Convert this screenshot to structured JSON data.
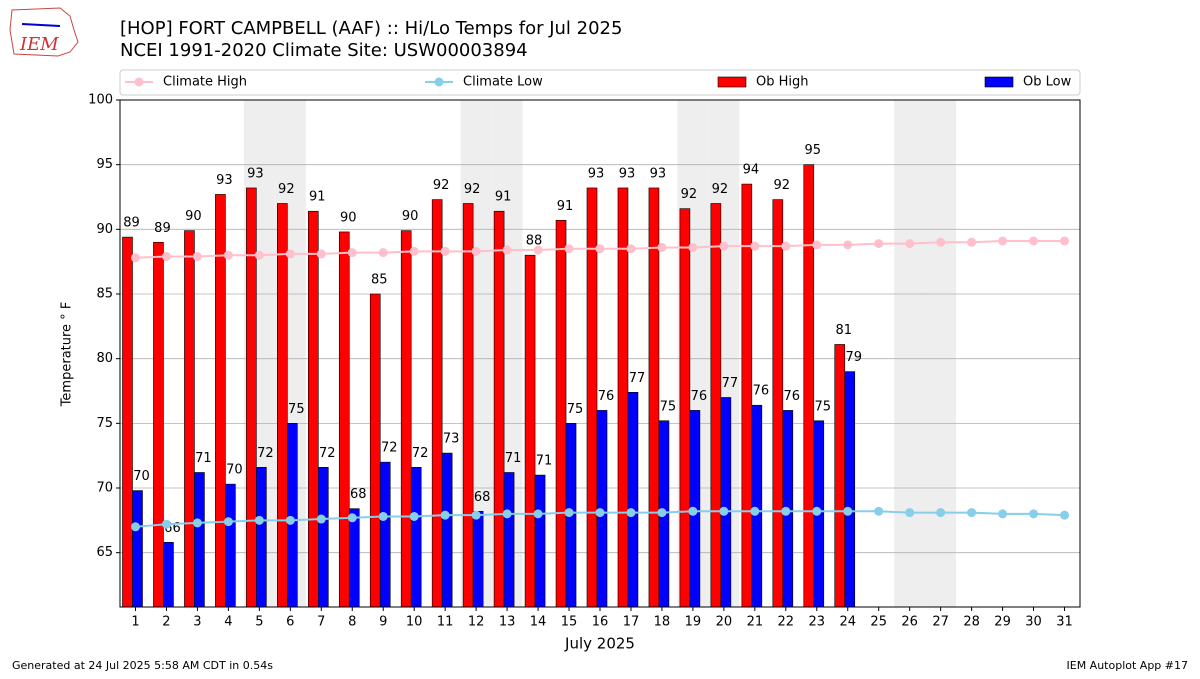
{
  "logo_text": "IEM",
  "footer_left": "Generated at 24 Jul 2025 5:58 AM CDT in 0.54s",
  "footer_right": "IEM Autoplot App #17",
  "chart_data": {
    "type": "bar",
    "title": "[HOP] FORT CAMPBELL (AAF) :: Hi/Lo Temps for Jul 2025",
    "subtitle": "NCEI 1991-2020 Climate Site: USW00003894",
    "xlabel": "July 2025",
    "ylabel": "Temperature ° F",
    "x": [
      1,
      2,
      3,
      4,
      5,
      6,
      7,
      8,
      9,
      10,
      11,
      12,
      13,
      14,
      15,
      16,
      17,
      18,
      19,
      20,
      21,
      22,
      23,
      24,
      25,
      26,
      27,
      28,
      29,
      30,
      31
    ],
    "xlim": [
      0.5,
      31.5
    ],
    "xticks": [
      1,
      2,
      3,
      4,
      5,
      6,
      7,
      8,
      9,
      10,
      11,
      12,
      13,
      14,
      15,
      16,
      17,
      18,
      19,
      20,
      21,
      22,
      23,
      24,
      25,
      26,
      27,
      28,
      29,
      30,
      31
    ],
    "ylim": [
      60.8,
      100
    ],
    "yticks": [
      65,
      70,
      75,
      80,
      85,
      90,
      95,
      100
    ],
    "grid": true,
    "weekend_days": [
      5,
      6,
      12,
      13,
      19,
      20,
      26,
      27
    ],
    "series": [
      {
        "name": "Climate High",
        "type": "line",
        "color": "#ffc0cb",
        "values": [
          87.8,
          87.9,
          87.9,
          88.0,
          88.0,
          88.1,
          88.1,
          88.2,
          88.2,
          88.3,
          88.3,
          88.3,
          88.4,
          88.4,
          88.5,
          88.5,
          88.5,
          88.6,
          88.6,
          88.7,
          88.7,
          88.7,
          88.8,
          88.8,
          88.9,
          88.9,
          89.0,
          89.0,
          89.1,
          89.1,
          89.1
        ]
      },
      {
        "name": "Climate Low",
        "type": "line",
        "color": "#87ceeb",
        "values": [
          67.0,
          67.2,
          67.3,
          67.4,
          67.5,
          67.5,
          67.6,
          67.7,
          67.8,
          67.8,
          67.9,
          67.9,
          68.0,
          68.0,
          68.1,
          68.1,
          68.1,
          68.1,
          68.2,
          68.2,
          68.2,
          68.2,
          68.2,
          68.2,
          68.2,
          68.1,
          68.1,
          68.1,
          68.0,
          68.0,
          67.9
        ]
      },
      {
        "name": "Ob High",
        "type": "bar",
        "color": "#ff0000",
        "values": [
          89.4,
          89.0,
          89.9,
          92.7,
          93.2,
          92.0,
          91.4,
          89.8,
          85.0,
          89.9,
          92.3,
          92.0,
          91.4,
          88.0,
          90.7,
          93.2,
          93.2,
          93.2,
          91.6,
          92.0,
          93.5,
          92.3,
          95.0,
          81.1,
          null,
          null,
          null,
          null,
          null,
          null,
          null
        ],
        "value_labels": [
          "89",
          "89",
          "90",
          "93",
          "93",
          "92",
          "91",
          "90",
          "85",
          "90",
          "92",
          "92",
          "91",
          "88",
          "91",
          "93",
          "93",
          "93",
          "92",
          "92",
          "94",
          "92",
          "95",
          "81",
          null,
          null,
          null,
          null,
          null,
          null,
          null
        ]
      },
      {
        "name": "Ob Low",
        "type": "bar",
        "color": "#0000ff",
        "values": [
          69.8,
          65.8,
          71.2,
          70.3,
          71.6,
          75.0,
          71.6,
          68.4,
          72.0,
          71.6,
          72.7,
          68.2,
          71.2,
          71.0,
          75.0,
          76.0,
          77.4,
          75.2,
          76.0,
          77.0,
          76.4,
          76.0,
          75.2,
          79.0,
          null,
          null,
          null,
          null,
          null,
          null,
          null
        ],
        "value_labels": [
          "70",
          "66",
          "71",
          "70",
          "72",
          "75",
          "72",
          "68",
          "72",
          "72",
          "73",
          "68",
          "71",
          "71",
          "75",
          "76",
          "77",
          "75",
          "76",
          "77",
          "76",
          "76",
          "75",
          "79",
          null,
          null,
          null,
          null,
          null,
          null,
          null
        ]
      }
    ]
  }
}
